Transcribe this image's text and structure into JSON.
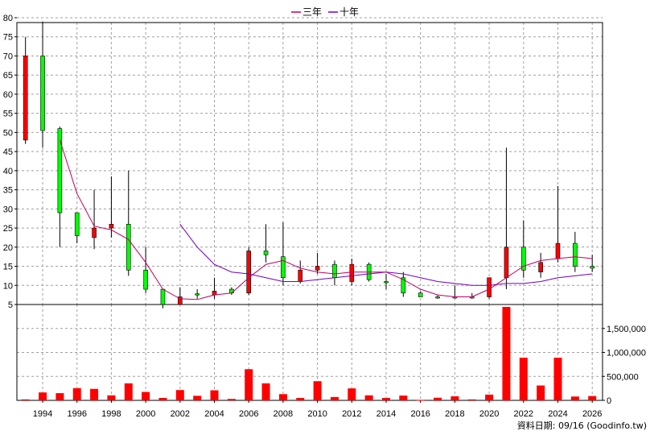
{
  "footer": {
    "data_date": "資料日期: 09/16 (Goodinfo.tw)"
  },
  "chart_data": {
    "type": "candlestick",
    "legend": [
      {
        "label": "三年",
        "color": "#c00060"
      },
      {
        "label": "十年",
        "color": "#7000c0"
      }
    ],
    "colors": {
      "up": "#00ff00",
      "down": "#ff0000",
      "volume": "#ff0000",
      "edge": "#000000",
      "ma3": "#c00060",
      "ma10": "#7000c0",
      "grid": "#a0a0a0"
    },
    "price_axis": {
      "min": 5,
      "max": 80,
      "ticks": [
        5,
        10,
        15,
        20,
        25,
        30,
        35,
        40,
        45,
        50,
        55,
        60,
        65,
        70,
        75,
        80
      ]
    },
    "volume_axis": {
      "min": 0,
      "max": 2000000,
      "ticks": [
        0,
        500000,
        1000000,
        1500000
      ],
      "tick_labels": [
        "0",
        "500,000",
        "1,000,000",
        "1,500,000"
      ]
    },
    "x_ticks": [
      "1994",
      "1996",
      "1998",
      "2000",
      "2002",
      "2004",
      "2006",
      "2008",
      "2010",
      "2012",
      "2014",
      "2016",
      "2018",
      "2020",
      "2022",
      "2024",
      "2026"
    ],
    "years": [
      1993,
      1994,
      1995,
      1996,
      1997,
      1998,
      1999,
      2000,
      2001,
      2002,
      2003,
      2004,
      2005,
      2006,
      2007,
      2008,
      2009,
      2010,
      2011,
      2012,
      2013,
      2014,
      2015,
      2016,
      2017,
      2018,
      2019,
      2020,
      2021,
      2022,
      2023,
      2024,
      2025,
      2026
    ],
    "candles": [
      {
        "year": 1993,
        "open": 70,
        "high": 75,
        "low": 47,
        "close": 48
      },
      {
        "year": 1994,
        "open": 50.5,
        "high": 79,
        "low": 46,
        "close": 70
      },
      {
        "year": 1995,
        "open": 29,
        "high": 51.5,
        "low": 20,
        "close": 51
      },
      {
        "year": 1996,
        "open": 23,
        "high": 29,
        "low": 21,
        "close": 29
      },
      {
        "year": 1997,
        "open": 25,
        "high": 35,
        "low": 19.5,
        "close": 22.5
      },
      {
        "year": 1998,
        "open": 26,
        "high": 38.5,
        "low": 22.5,
        "close": 25
      },
      {
        "year": 1999,
        "open": 14,
        "high": 40,
        "low": 12.5,
        "close": 26
      },
      {
        "year": 2000,
        "open": 9,
        "high": 20,
        "low": 8,
        "close": 14
      },
      {
        "year": 2001,
        "open": 5,
        "high": 9,
        "low": 4,
        "close": 9
      },
      {
        "year": 2002,
        "open": 7,
        "high": 9.5,
        "low": 5,
        "close": 5
      },
      {
        "year": 2003,
        "open": 7.5,
        "high": 9,
        "low": 6.5,
        "close": 7.8
      },
      {
        "year": 2004,
        "open": 8.5,
        "high": 12,
        "low": 6.5,
        "close": 7.5
      },
      {
        "year": 2005,
        "open": 8,
        "high": 9.5,
        "low": 7.5,
        "close": 9
      },
      {
        "year": 2006,
        "open": 19,
        "high": 20,
        "low": 7.5,
        "close": 8
      },
      {
        "year": 2007,
        "open": 18,
        "high": 26,
        "low": 16,
        "close": 19
      },
      {
        "year": 2008,
        "open": 12,
        "high": 26.5,
        "low": 10,
        "close": 17.5
      },
      {
        "year": 2009,
        "open": 14,
        "high": 16.5,
        "low": 10.5,
        "close": 11
      },
      {
        "year": 2010,
        "open": 15,
        "high": 18.5,
        "low": 13,
        "close": 14
      },
      {
        "year": 2011,
        "open": 12,
        "high": 16.5,
        "low": 10,
        "close": 15.5
      },
      {
        "year": 2012,
        "open": 15.5,
        "high": 17,
        "low": 10,
        "close": 11
      },
      {
        "year": 2013,
        "open": 11.5,
        "high": 16,
        "low": 11,
        "close": 15.5
      },
      {
        "year": 2014,
        "open": 11,
        "high": 13,
        "low": 9,
        "close": 11
      },
      {
        "year": 2015,
        "open": 8,
        "high": 13.5,
        "low": 7,
        "close": 12
      },
      {
        "year": 2016,
        "open": 7,
        "high": 8.5,
        "low": 7,
        "close": 8
      },
      {
        "year": 2017,
        "open": 7,
        "high": 7.5,
        "low": 6.5,
        "close": 7
      },
      {
        "year": 2018,
        "open": 7,
        "high": 10,
        "low": 6.5,
        "close": 7
      },
      {
        "year": 2019,
        "open": 7,
        "high": 8,
        "low": 6.5,
        "close": 7
      },
      {
        "year": 2020,
        "open": 12,
        "high": 12,
        "low": 6.5,
        "close": 7
      },
      {
        "year": 2021,
        "open": 20,
        "high": 46,
        "low": 9,
        "close": 12
      },
      {
        "year": 2022,
        "open": 14,
        "high": 27,
        "low": 12,
        "close": 20
      },
      {
        "year": 2023,
        "open": 16,
        "high": 18.5,
        "low": 12,
        "close": 13.5
      },
      {
        "year": 2024,
        "open": 21,
        "high": 36,
        "low": 16,
        "close": 17
      },
      {
        "year": 2025,
        "open": 15,
        "high": 24,
        "low": 13.5,
        "close": 21
      },
      {
        "year": 2026,
        "open": 14.5,
        "high": 18,
        "low": 13.5,
        "close": 15
      }
    ],
    "volume": [
      {
        "year": 1993,
        "value": 20000
      },
      {
        "year": 1994,
        "value": 165000
      },
      {
        "year": 1995,
        "value": 150000
      },
      {
        "year": 1996,
        "value": 255000
      },
      {
        "year": 1997,
        "value": 240000
      },
      {
        "year": 1998,
        "value": 105000
      },
      {
        "year": 1999,
        "value": 355000
      },
      {
        "year": 2000,
        "value": 175000
      },
      {
        "year": 2001,
        "value": 50000
      },
      {
        "year": 2002,
        "value": 215000
      },
      {
        "year": 2003,
        "value": 95000
      },
      {
        "year": 2004,
        "value": 210000
      },
      {
        "year": 2005,
        "value": 30000
      },
      {
        "year": 2006,
        "value": 650000
      },
      {
        "year": 2007,
        "value": 355000
      },
      {
        "year": 2008,
        "value": 130000
      },
      {
        "year": 2009,
        "value": 50000
      },
      {
        "year": 2010,
        "value": 400000
      },
      {
        "year": 2011,
        "value": 70000
      },
      {
        "year": 2012,
        "value": 250000
      },
      {
        "year": 2013,
        "value": 105000
      },
      {
        "year": 2014,
        "value": 50000
      },
      {
        "year": 2015,
        "value": 100000
      },
      {
        "year": 2016,
        "value": 10000
      },
      {
        "year": 2017,
        "value": 55000
      },
      {
        "year": 2018,
        "value": 85000
      },
      {
        "year": 2019,
        "value": 20000
      },
      {
        "year": 2020,
        "value": 120000
      },
      {
        "year": 2021,
        "value": 1950000
      },
      {
        "year": 2022,
        "value": 890000
      },
      {
        "year": 2023,
        "value": 310000
      },
      {
        "year": 2024,
        "value": 890000
      },
      {
        "year": 2025,
        "value": 80000
      },
      {
        "year": 2026,
        "value": 90000
      }
    ],
    "ma3": [
      {
        "year": 1995,
        "value": 48
      },
      {
        "year": 1996,
        "value": 34
      },
      {
        "year": 1997,
        "value": 25.5
      },
      {
        "year": 1998,
        "value": 24.5
      },
      {
        "year": 1999,
        "value": 22
      },
      {
        "year": 2000,
        "value": 16
      },
      {
        "year": 2001,
        "value": 9
      },
      {
        "year": 2002,
        "value": 6.5
      },
      {
        "year": 2003,
        "value": 6.3
      },
      {
        "year": 2004,
        "value": 7.5
      },
      {
        "year": 2005,
        "value": 8
      },
      {
        "year": 2006,
        "value": 12
      },
      {
        "year": 2007,
        "value": 15.5
      },
      {
        "year": 2008,
        "value": 16.5
      },
      {
        "year": 2009,
        "value": 14.5
      },
      {
        "year": 2010,
        "value": 13.5
      },
      {
        "year": 2011,
        "value": 13
      },
      {
        "year": 2012,
        "value": 13.5
      },
      {
        "year": 2013,
        "value": 13.5
      },
      {
        "year": 2014,
        "value": 13.5
      },
      {
        "year": 2015,
        "value": 11.5
      },
      {
        "year": 2016,
        "value": 9
      },
      {
        "year": 2017,
        "value": 7.5
      },
      {
        "year": 2018,
        "value": 7
      },
      {
        "year": 2019,
        "value": 7
      },
      {
        "year": 2020,
        "value": 9
      },
      {
        "year": 2021,
        "value": 12
      },
      {
        "year": 2022,
        "value": 15
      },
      {
        "year": 2023,
        "value": 16.5
      },
      {
        "year": 2024,
        "value": 17
      },
      {
        "year": 2025,
        "value": 17.5
      },
      {
        "year": 2026,
        "value": 17
      }
    ],
    "ma10": [
      {
        "year": 2002,
        "value": 26
      },
      {
        "year": 2003,
        "value": 20
      },
      {
        "year": 2004,
        "value": 15.5
      },
      {
        "year": 2005,
        "value": 13.5
      },
      {
        "year": 2006,
        "value": 13
      },
      {
        "year": 2007,
        "value": 12
      },
      {
        "year": 2008,
        "value": 11
      },
      {
        "year": 2009,
        "value": 11
      },
      {
        "year": 2010,
        "value": 11.5
      },
      {
        "year": 2011,
        "value": 12
      },
      {
        "year": 2012,
        "value": 12.5
      },
      {
        "year": 2013,
        "value": 13
      },
      {
        "year": 2014,
        "value": 13.5
      },
      {
        "year": 2015,
        "value": 13
      },
      {
        "year": 2016,
        "value": 12
      },
      {
        "year": 2017,
        "value": 11
      },
      {
        "year": 2018,
        "value": 10.5
      },
      {
        "year": 2019,
        "value": 10
      },
      {
        "year": 2020,
        "value": 10
      },
      {
        "year": 2021,
        "value": 10.5
      },
      {
        "year": 2022,
        "value": 10.5
      },
      {
        "year": 2023,
        "value": 11
      },
      {
        "year": 2024,
        "value": 12
      },
      {
        "year": 2025,
        "value": 12.5
      },
      {
        "year": 2026,
        "value": 13
      }
    ]
  }
}
